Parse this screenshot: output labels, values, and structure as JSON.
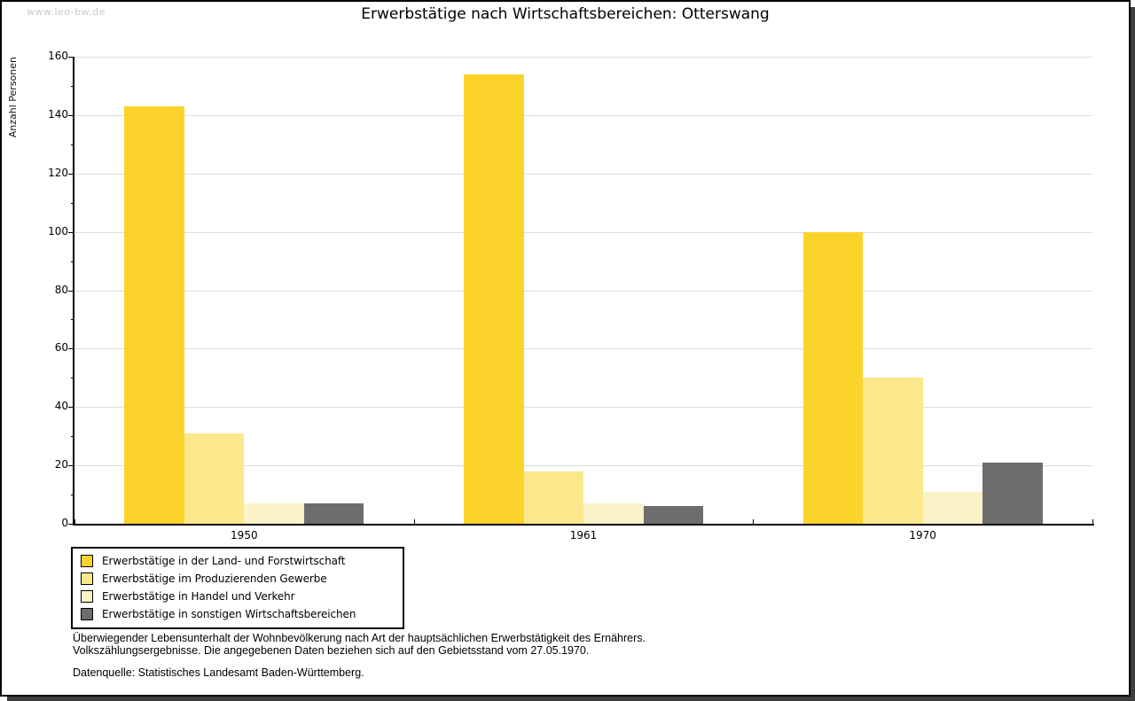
{
  "watermark": "www.leo-bw.de",
  "chart_data": {
    "type": "bar",
    "title": "Erwerbstätige nach Wirtschaftsbereichen: Otterswang",
    "ylabel": "Anzahl Personen",
    "xlabel": "",
    "ylim": [
      0,
      160
    ],
    "ytick_step": 20,
    "yticks": [
      0,
      20,
      40,
      60,
      80,
      100,
      120,
      140,
      160
    ],
    "grid": true,
    "legend_position": "bottom-left",
    "categories": [
      "1950",
      "1961",
      "1970"
    ],
    "series": [
      {
        "name": "Erwerbstätige in der Land- und Forstwirtschaft",
        "color": "#fcd32b",
        "values": [
          143,
          154,
          100
        ]
      },
      {
        "name": "Erwerbstätige im Produzierenden Gewerbe",
        "color": "#fbe88d",
        "values": [
          31,
          18,
          50
        ]
      },
      {
        "name": "Erwerbstätige in Handel und Verkehr",
        "color": "#fbf3c8",
        "values": [
          7,
          7,
          11
        ]
      },
      {
        "name": "Erwerbstätige in sonstigen Wirtschaftsbereichen",
        "color": "#6d6d6d",
        "values": [
          7,
          6,
          21
        ]
      }
    ]
  },
  "footnote": {
    "line1": "Überwiegender Lebensunterhalt der Wohnbevölkerung nach Art der hauptsächlichen Erwerbstätigkeit des Ernährers.",
    "line2": "Volkszählungsergebnisse. Die angegebenen Daten beziehen sich auf den Gebietsstand vom 27.05.1970.",
    "source": "Datenquelle: Statistisches Landesamt Baden-Württemberg."
  }
}
